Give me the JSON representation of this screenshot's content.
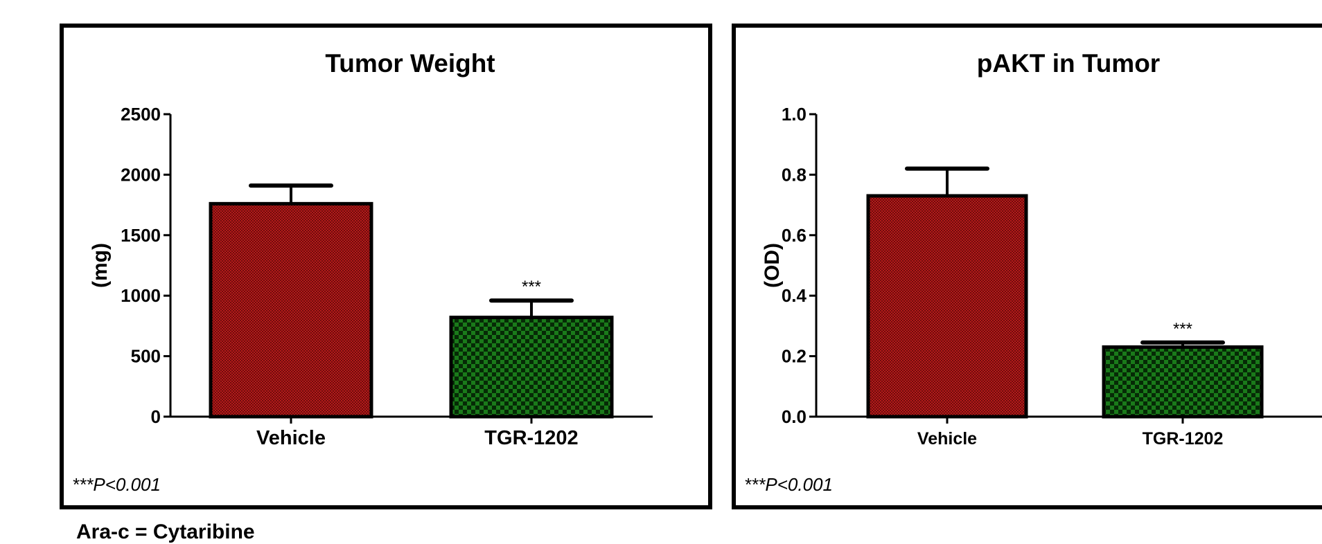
{
  "colors": {
    "vehicle": "#b51a1a",
    "treatment": "#1a7a1a",
    "axis": "#000000"
  },
  "chart_data": [
    {
      "type": "bar",
      "title": "Tumor Weight",
      "xlabel": "",
      "ylabel": "(mg)",
      "categories": [
        "Vehicle",
        "TGR-1202"
      ],
      "values": [
        1760,
        820
      ],
      "errors": [
        150,
        140
      ],
      "annotations": [
        "",
        "***"
      ],
      "ylim": [
        0,
        2500
      ],
      "yticks": [
        "0",
        "500",
        "1000",
        "1500",
        "2000",
        "2500"
      ],
      "ytick_values": [
        0,
        500,
        1000,
        1500,
        2000,
        2500
      ],
      "grid": false,
      "footnote": "***P<0.001"
    },
    {
      "type": "bar",
      "title": "pAKT in Tumor",
      "xlabel": "",
      "ylabel": "(OD)",
      "categories": [
        "Vehicle",
        "TGR-1202"
      ],
      "values": [
        0.73,
        0.23
      ],
      "errors": [
        0.09,
        0.015
      ],
      "annotations": [
        "",
        "***"
      ],
      "ylim": [
        0,
        1.0
      ],
      "yticks": [
        "0.0",
        "0.2",
        "0.4",
        "0.6",
        "0.8",
        "1.0"
      ],
      "ytick_values": [
        0,
        0.2,
        0.4,
        0.6,
        0.8,
        1.0
      ],
      "grid": false,
      "footnote": "***P<0.001"
    }
  ],
  "bottom_note": "Ara-c = Cytaribine"
}
